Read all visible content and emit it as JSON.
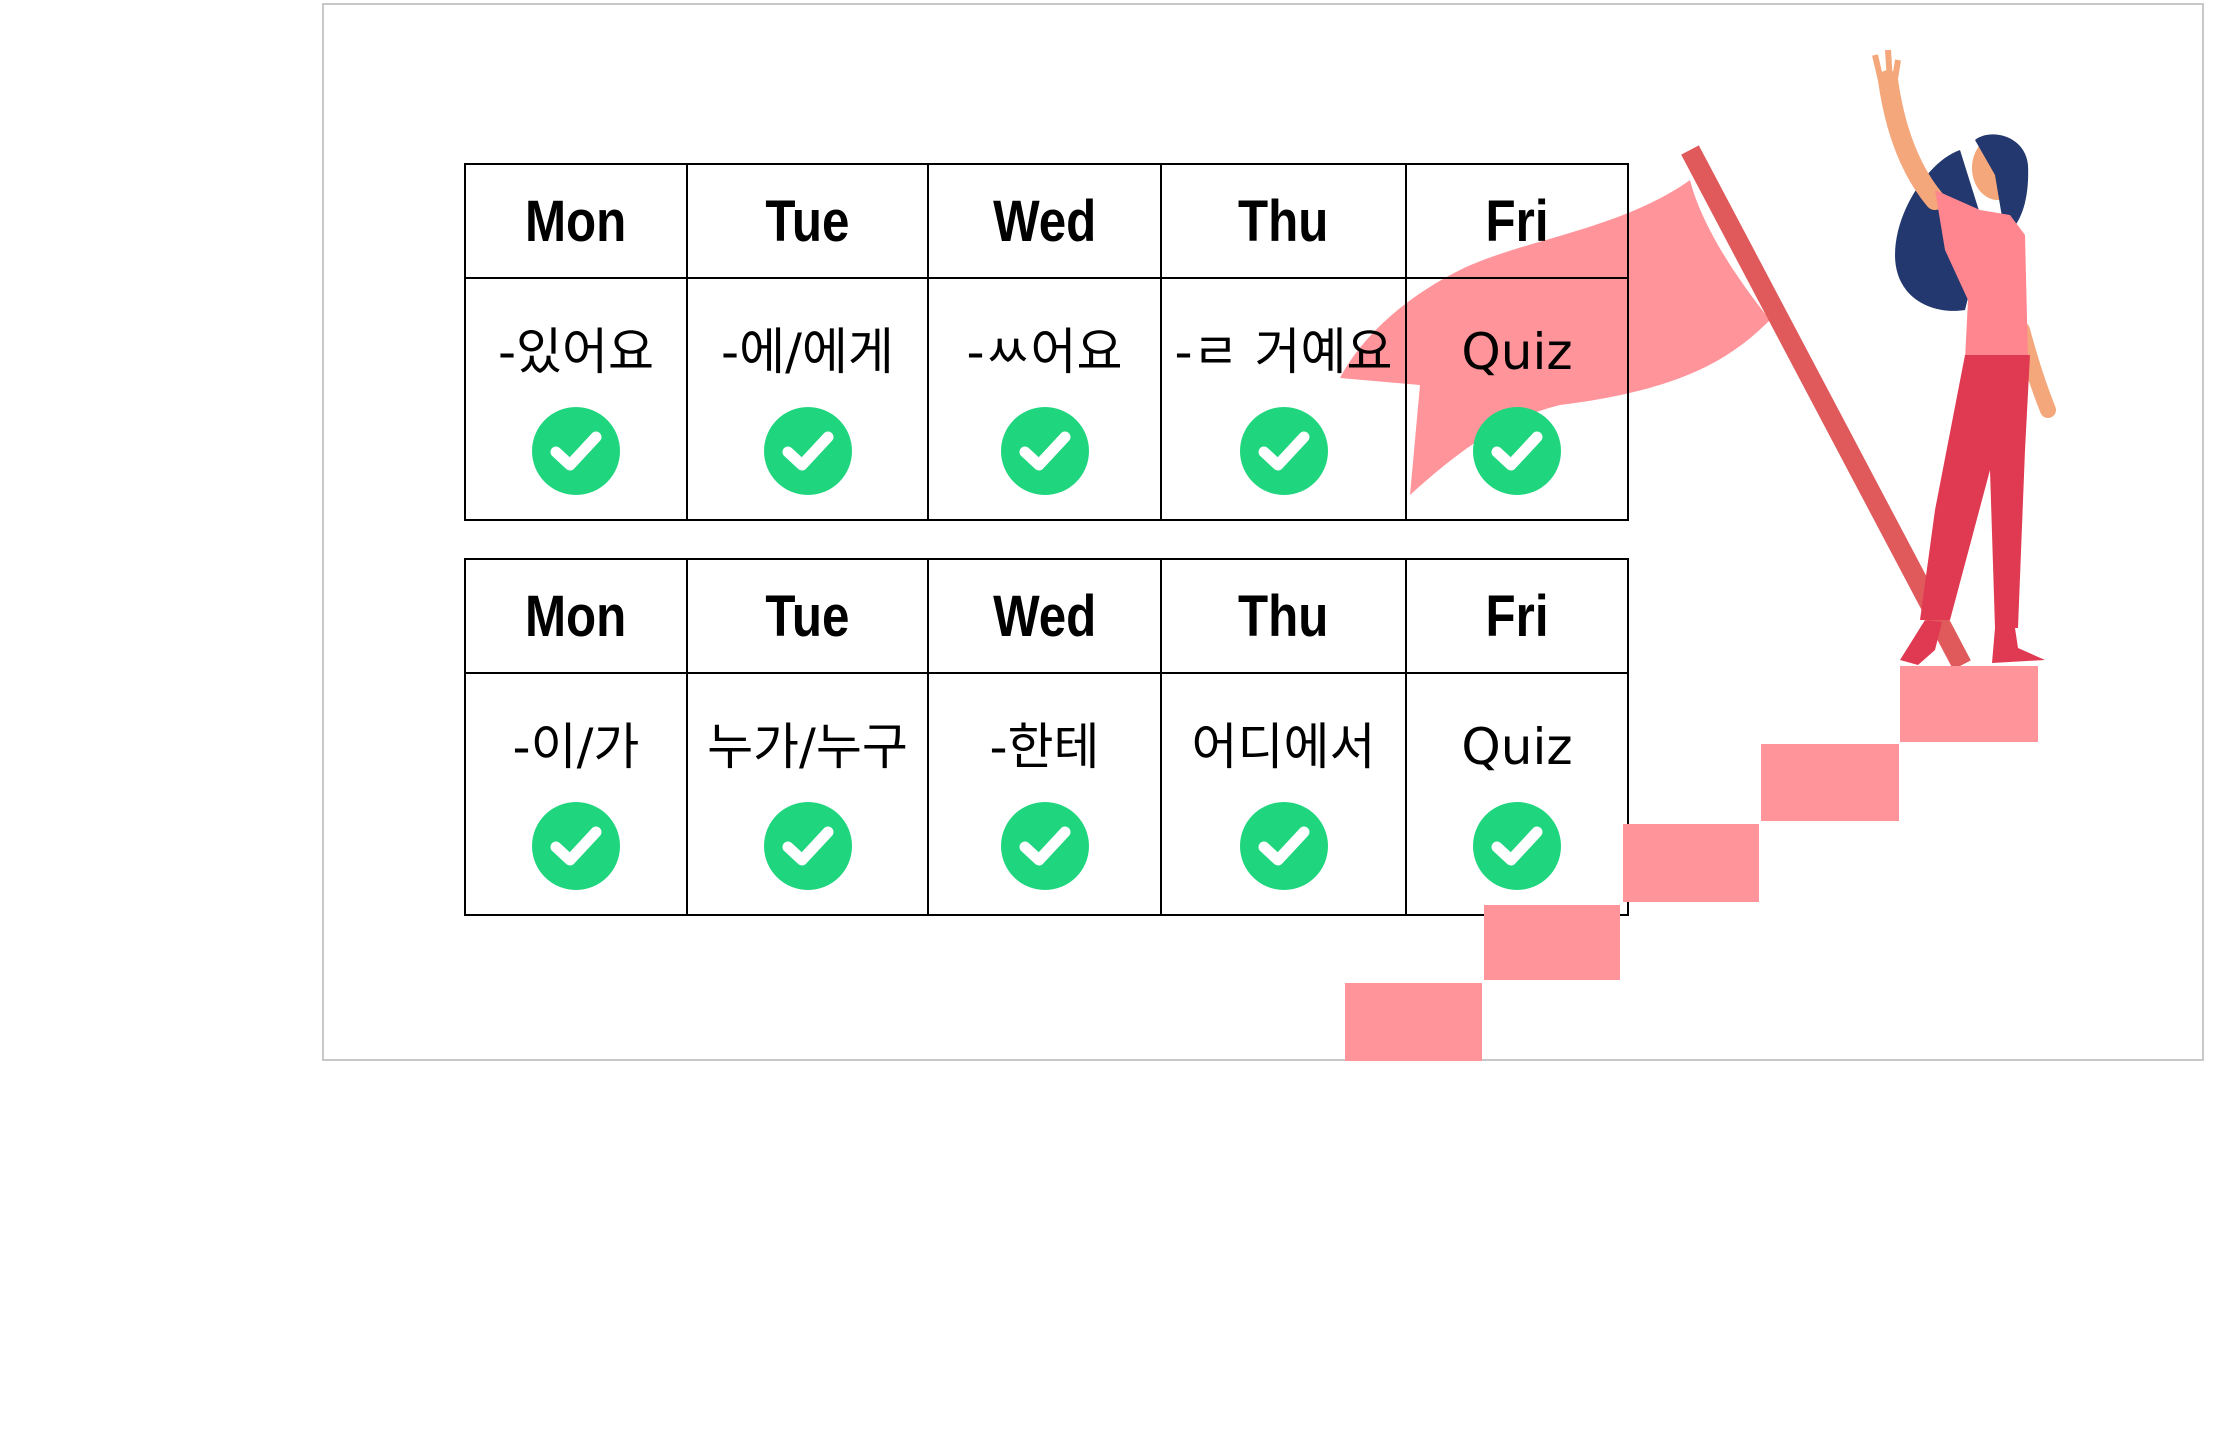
{
  "colors": {
    "check": "#1fd67f",
    "step": "#ff949a",
    "flag": "#ff949a",
    "pole": "#e05a5c"
  },
  "weeks": [
    {
      "days": [
        "Mon",
        "Tue",
        "Wed",
        "Thu",
        "Fri"
      ],
      "topics": [
        "-있어요",
        "-에/에게",
        "-ㅆ어요",
        "-ㄹ 거예요",
        "Quiz"
      ],
      "completed": [
        true,
        true,
        true,
        true,
        true
      ]
    },
    {
      "days": [
        "Mon",
        "Tue",
        "Wed",
        "Thu",
        "Fri"
      ],
      "topics": [
        "-이/가",
        "누가/누구",
        "-한테",
        "어디에서",
        "Quiz"
      ],
      "completed": [
        true,
        true,
        true,
        true,
        true
      ]
    }
  ],
  "icons": {
    "status": "check-circle-icon"
  }
}
